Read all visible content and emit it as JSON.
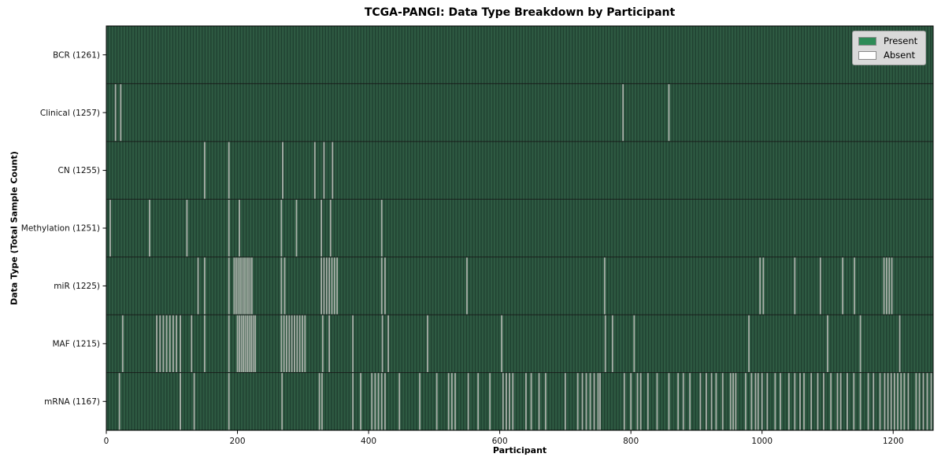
{
  "chart_data": {
    "type": "heatmap",
    "title": "TCGA-PANGI: Data Type Breakdown by Participant",
    "xlabel": "Participant",
    "ylabel": "Data Type (Total Sample Count)",
    "x_axis": {
      "min": 0,
      "max": 1261,
      "ticks": [
        0,
        200,
        400,
        600,
        800,
        1000,
        1200
      ]
    },
    "legend": {
      "position": "upper right",
      "items": [
        {
          "label": "Present",
          "color": "#2e8b57"
        },
        {
          "label": "Absent",
          "color": "#ffffff"
        }
      ]
    },
    "colors": {
      "present": "#2e5a42",
      "present_stripe": "#1f4030",
      "absent_line": "#a9b0a9",
      "row_divider": "#161616",
      "plot_border": "#000000",
      "legend_bg": "#d9d9d9",
      "legend_border": "#a3a3a3"
    },
    "rows": [
      {
        "name": "BCR",
        "total": 1261,
        "label": "BCR (1261)",
        "absent": []
      },
      {
        "name": "Clinical",
        "total": 1257,
        "label": "Clinical (1257)",
        "absent": [
          14,
          22,
          788,
          858
        ]
      },
      {
        "name": "CN",
        "total": 1255,
        "label": "CN (1255)",
        "absent": [
          150,
          187,
          269,
          318,
          332,
          345
        ]
      },
      {
        "name": "Methylation",
        "total": 1251,
        "label": "Methylation (1251)",
        "absent": [
          6,
          66,
          123,
          187,
          203,
          267,
          290,
          328,
          342,
          420
        ]
      },
      {
        "name": "miR",
        "total": 1225,
        "label": "miR (1225)",
        "absent": [
          140,
          150,
          187,
          195,
          198,
          201,
          204,
          207,
          210,
          213,
          216,
          219,
          222,
          267,
          272,
          328,
          332,
          336,
          340,
          344,
          348,
          352,
          420,
          425,
          550,
          760,
          997,
          1002,
          1050,
          1089,
          1123,
          1141,
          1186,
          1190,
          1194,
          1198
        ]
      },
      {
        "name": "MAF",
        "total": 1215,
        "label": "MAF (1215)",
        "absent": [
          25,
          77,
          82,
          87,
          92,
          97,
          102,
          107,
          113,
          130,
          150,
          187,
          200,
          203,
          206,
          209,
          212,
          215,
          218,
          221,
          224,
          227,
          267,
          271,
          275,
          279,
          283,
          287,
          291,
          295,
          299,
          303,
          330,
          340,
          376,
          421,
          430,
          490,
          603,
          761,
          772,
          805,
          980,
          1100,
          1150,
          1210
        ]
      },
      {
        "name": "mRNA",
        "total": 1167,
        "label": "mRNA (1167)",
        "absent": [
          20,
          113,
          134,
          187,
          268,
          325,
          329,
          376,
          388,
          405,
          410,
          415,
          420,
          425,
          447,
          478,
          504,
          522,
          527,
          532,
          552,
          567,
          585,
          605,
          610,
          615,
          620,
          640,
          648,
          660,
          670,
          700,
          719,
          726,
          732,
          738,
          744,
          750,
          753,
          790,
          800,
          810,
          815,
          826,
          840,
          858,
          872,
          880,
          890,
          906,
          915,
          923,
          930,
          940,
          952,
          956,
          960,
          975,
          984,
          990,
          994,
          1000,
          1008,
          1020,
          1028,
          1041,
          1050,
          1058,
          1064,
          1075,
          1085,
          1094,
          1105,
          1115,
          1120,
          1130,
          1140,
          1150,
          1162,
          1170,
          1180,
          1187,
          1192,
          1197,
          1202,
          1207,
          1212,
          1217,
          1223,
          1235,
          1240,
          1246,
          1252,
          1258
        ]
      }
    ]
  }
}
